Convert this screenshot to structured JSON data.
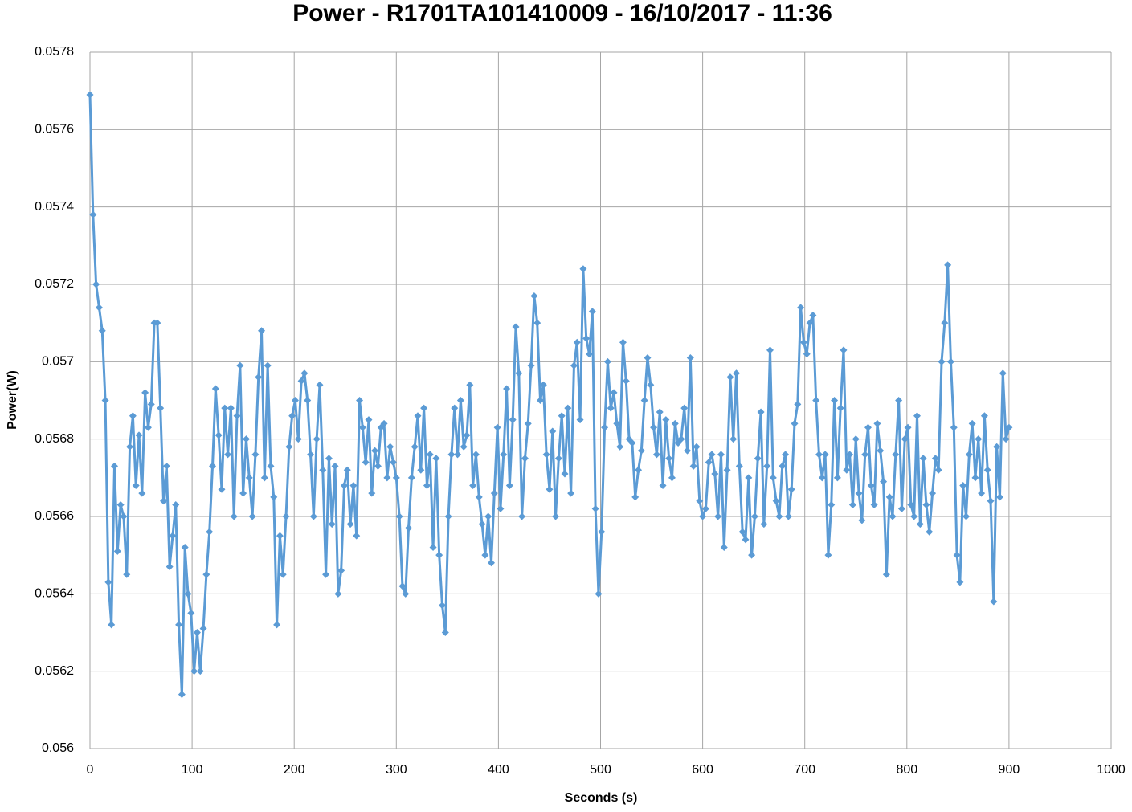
{
  "chart_data": {
    "type": "line",
    "title": "Power - R1701TA101410009 - 16/10/2017 - 11:36",
    "x_label": "Seconds (s)",
    "y_label": "Power(W)",
    "color": "#5b9bd5",
    "grid": true,
    "xlim": [
      0,
      1000
    ],
    "xticks": [
      0,
      100,
      200,
      300,
      400,
      500,
      600,
      700,
      800,
      900,
      1000
    ],
    "ylim": [
      0.056,
      0.0578
    ],
    "yticks": [
      0.056,
      0.0562,
      0.0564,
      0.0566,
      0.0568,
      0.057,
      0.0572,
      0.0574,
      0.0576,
      0.0578
    ],
    "x": [
      0,
      3,
      6,
      9,
      12,
      15,
      18,
      21,
      24,
      27,
      30,
      33,
      36,
      39,
      42,
      45,
      48,
      51,
      54,
      57,
      60,
      63,
      66,
      69,
      72,
      75,
      78,
      81,
      84,
      87,
      90,
      93,
      96,
      99,
      102,
      105,
      108,
      111,
      114,
      117,
      120,
      123,
      126,
      129,
      132,
      135,
      138,
      141,
      144,
      147,
      150,
      153,
      156,
      159,
      162,
      165,
      168,
      171,
      174,
      177,
      180,
      183,
      186,
      189,
      192,
      195,
      198,
      201,
      204,
      207,
      210,
      213,
      216,
      219,
      222,
      225,
      228,
      231,
      234,
      237,
      240,
      243,
      246,
      249,
      252,
      255,
      258,
      261,
      264,
      267,
      270,
      273,
      276,
      279,
      282,
      285,
      288,
      291,
      294,
      297,
      300,
      303,
      306,
      309,
      312,
      315,
      318,
      321,
      324,
      327,
      330,
      333,
      336,
      339,
      342,
      345,
      348,
      351,
      354,
      357,
      360,
      363,
      366,
      369,
      372,
      375,
      378,
      381,
      384,
      387,
      390,
      393,
      396,
      399,
      402,
      405,
      408,
      411,
      414,
      417,
      420,
      423,
      426,
      429,
      432,
      435,
      438,
      441,
      444,
      447,
      450,
      453,
      456,
      459,
      462,
      465,
      468,
      471,
      474,
      477,
      480,
      483,
      486,
      489,
      492,
      495,
      498,
      501,
      504,
      507,
      510,
      513,
      516,
      519,
      522,
      525,
      528,
      531,
      534,
      537,
      540,
      543,
      546,
      549,
      552,
      555,
      558,
      561,
      564,
      567,
      570,
      573,
      576,
      579,
      582,
      585,
      588,
      591,
      594,
      597,
      600,
      603,
      606,
      609,
      612,
      615,
      618,
      621,
      624,
      627,
      630,
      633,
      636,
      639,
      642,
      645,
      648,
      651,
      654,
      657,
      660,
      663,
      666,
      669,
      672,
      675,
      678,
      681,
      684,
      687,
      690,
      693,
      696,
      699,
      702,
      705,
      708,
      711,
      714,
      717,
      720,
      723,
      726,
      729,
      732,
      735,
      738,
      741,
      744,
      747,
      750,
      753,
      756,
      759,
      762,
      765,
      768,
      771,
      774,
      777,
      780,
      783,
      786,
      789,
      792,
      795,
      798,
      801,
      804,
      807,
      810,
      813,
      816,
      819,
      822,
      825,
      828,
      831,
      834,
      837,
      840,
      843,
      846,
      849,
      852,
      855,
      858,
      861,
      864,
      867,
      870,
      873,
      876,
      879,
      882,
      885,
      888,
      891,
      894,
      897,
      900
    ],
    "values": [
      0.05769,
      0.05738,
      0.0572,
      0.05714,
      0.05708,
      0.0569,
      0.05643,
      0.05632,
      0.05673,
      0.05651,
      0.05663,
      0.0566,
      0.05645,
      0.05678,
      0.05686,
      0.05668,
      0.05681,
      0.05666,
      0.05692,
      0.05683,
      0.05689,
      0.0571,
      0.0571,
      0.05688,
      0.05664,
      0.05673,
      0.05647,
      0.05655,
      0.05663,
      0.05632,
      0.05614,
      0.05652,
      0.0564,
      0.05635,
      0.0562,
      0.0563,
      0.0562,
      0.05631,
      0.05645,
      0.05656,
      0.05673,
      0.05693,
      0.05681,
      0.05667,
      0.05688,
      0.05676,
      0.05688,
      0.0566,
      0.05686,
      0.05699,
      0.05666,
      0.0568,
      0.0567,
      0.0566,
      0.05676,
      0.05696,
      0.05708,
      0.0567,
      0.05699,
      0.05673,
      0.05665,
      0.05632,
      0.05655,
      0.05645,
      0.0566,
      0.05678,
      0.05686,
      0.0569,
      0.0568,
      0.05695,
      0.05697,
      0.0569,
      0.05676,
      0.0566,
      0.0568,
      0.05694,
      0.05672,
      0.05645,
      0.05675,
      0.05658,
      0.05673,
      0.0564,
      0.05646,
      0.05668,
      0.05672,
      0.05658,
      0.05668,
      0.05655,
      0.0569,
      0.05683,
      0.05674,
      0.05685,
      0.05666,
      0.05677,
      0.05673,
      0.05683,
      0.05684,
      0.0567,
      0.05678,
      0.05674,
      0.0567,
      0.0566,
      0.05642,
      0.0564,
      0.05657,
      0.0567,
      0.05678,
      0.05686,
      0.05672,
      0.05688,
      0.05668,
      0.05676,
      0.05652,
      0.05675,
      0.0565,
      0.05637,
      0.0563,
      0.0566,
      0.05676,
      0.05688,
      0.05676,
      0.0569,
      0.05678,
      0.05681,
      0.05694,
      0.05668,
      0.05676,
      0.05665,
      0.05658,
      0.0565,
      0.0566,
      0.05648,
      0.05666,
      0.05683,
      0.05662,
      0.05676,
      0.05693,
      0.05668,
      0.05685,
      0.05709,
      0.05697,
      0.0566,
      0.05675,
      0.05684,
      0.05699,
      0.05717,
      0.0571,
      0.0569,
      0.05694,
      0.05676,
      0.05667,
      0.05682,
      0.0566,
      0.05675,
      0.05686,
      0.05671,
      0.05688,
      0.05666,
      0.05699,
      0.05705,
      0.05685,
      0.05724,
      0.05706,
      0.05702,
      0.05713,
      0.05662,
      0.0564,
      0.05656,
      0.05683,
      0.057,
      0.05688,
      0.05692,
      0.05684,
      0.05678,
      0.05705,
      0.05695,
      0.0568,
      0.05679,
      0.05665,
      0.05672,
      0.05677,
      0.0569,
      0.05701,
      0.05694,
      0.05683,
      0.05676,
      0.05687,
      0.05668,
      0.05685,
      0.05675,
      0.0567,
      0.05684,
      0.05679,
      0.0568,
      0.05688,
      0.05677,
      0.05701,
      0.05673,
      0.05678,
      0.05664,
      0.0566,
      0.05662,
      0.05674,
      0.05676,
      0.05671,
      0.0566,
      0.05676,
      0.05652,
      0.05672,
      0.05696,
      0.0568,
      0.05697,
      0.05673,
      0.05656,
      0.05654,
      0.0567,
      0.0565,
      0.0566,
      0.05675,
      0.05687,
      0.05658,
      0.05673,
      0.05703,
      0.0567,
      0.05664,
      0.0566,
      0.05673,
      0.05676,
      0.0566,
      0.05667,
      0.05684,
      0.05689,
      0.05714,
      0.05705,
      0.05702,
      0.0571,
      0.05712,
      0.0569,
      0.05676,
      0.0567,
      0.05676,
      0.0565,
      0.05663,
      0.0569,
      0.0567,
      0.05688,
      0.05703,
      0.05672,
      0.05676,
      0.05663,
      0.0568,
      0.05666,
      0.05659,
      0.05676,
      0.05683,
      0.05668,
      0.05663,
      0.05684,
      0.05677,
      0.05669,
      0.05645,
      0.05665,
      0.0566,
      0.05676,
      0.0569,
      0.05662,
      0.0568,
      0.05683,
      0.05663,
      0.0566,
      0.05686,
      0.05658,
      0.05675,
      0.05663,
      0.05656,
      0.05666,
      0.05675,
      0.05672,
      0.057,
      0.0571,
      0.05725,
      0.057,
      0.05683,
      0.0565,
      0.05643,
      0.05668,
      0.0566,
      0.05676,
      0.05684,
      0.0567,
      0.0568,
      0.05666,
      0.05686,
      0.05672,
      0.05664,
      0.05638,
      0.05678,
      0.05665,
      0.05697,
      0.0568,
      0.05683
    ]
  }
}
